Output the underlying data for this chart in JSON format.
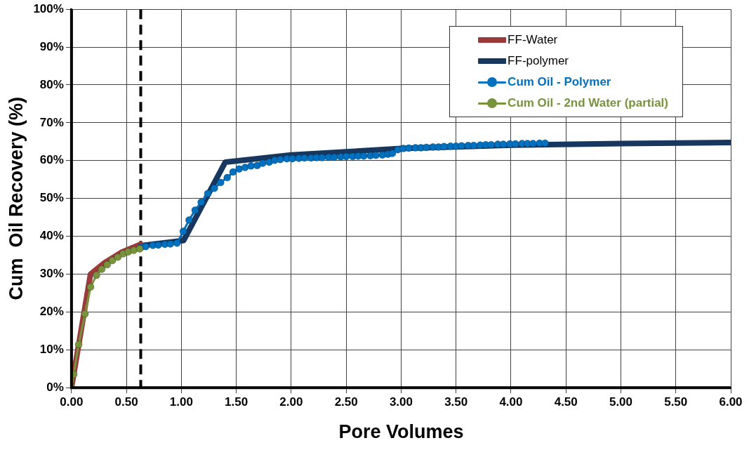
{
  "chart_data": {
    "type": "line",
    "xlabel": "Pore Volumes",
    "ylabel": "Cum  Oil Recovery (%)",
    "xlim": [
      0,
      6
    ],
    "xticks": [
      {
        "value": 0,
        "label": "0.00"
      },
      {
        "value": 0.5,
        "label": "0.50"
      },
      {
        "value": 1,
        "label": "1.00"
      },
      {
        "value": 1.5,
        "label": "1.50"
      },
      {
        "value": 2,
        "label": "2.00"
      },
      {
        "value": 2.5,
        "label": "2.50"
      },
      {
        "value": 3,
        "label": "3.00"
      },
      {
        "value": 3.5,
        "label": "3.50"
      },
      {
        "value": 4,
        "label": "4.00"
      },
      {
        "value": 4.5,
        "label": "4.50"
      },
      {
        "value": 5,
        "label": "5.00"
      },
      {
        "value": 5.5,
        "label": "5.50"
      },
      {
        "value": 6,
        "label": "6.00"
      }
    ],
    "ylim": [
      0,
      100
    ],
    "yticks": [
      {
        "value": 0,
        "label": "0%"
      },
      {
        "value": 10,
        "label": "10%"
      },
      {
        "value": 20,
        "label": "20%"
      },
      {
        "value": 30,
        "label": "30%"
      },
      {
        "value": 40,
        "label": "40%"
      },
      {
        "value": 50,
        "label": "50%"
      },
      {
        "value": 60,
        "label": "60%"
      },
      {
        "value": 70,
        "label": "70%"
      },
      {
        "value": 80,
        "label": "80%"
      },
      {
        "value": 90,
        "label": "90%"
      },
      {
        "value": 100,
        "label": "100%"
      }
    ],
    "grid": true,
    "legend": "top right",
    "ref_lines": [
      {
        "axis": "x",
        "value": 0.63,
        "color": "#000000",
        "line_style": "dashed"
      }
    ],
    "series": [
      {
        "name": "FF-Water",
        "marker": "none",
        "color": "#9b3a3a",
        "x": [
          0,
          0.173,
          0.3,
          0.45,
          0.63
        ],
        "values": [
          0,
          30,
          33,
          35.7,
          37.9
        ]
      },
      {
        "name": "FF-polymer",
        "marker": "none",
        "color": "#17375e",
        "x": [
          0.63,
          1.02,
          1.4,
          2,
          3,
          4,
          5,
          6
        ],
        "values": [
          37.5,
          38.9,
          59.6,
          61.5,
          63.2,
          64.1,
          64.5,
          64.8
        ]
      },
      {
        "name": "Cum Oil - Polymer",
        "marker": "circle",
        "color": "#0070c0",
        "x": [
          0.63,
          0.675,
          0.74,
          0.79,
          0.85,
          0.9,
          0.96,
          1.017,
          1.07,
          1.125,
          1.18,
          1.24,
          1.3,
          1.357,
          1.417,
          1.47,
          1.525,
          1.58,
          1.634,
          1.69,
          1.74,
          1.8,
          1.85,
          1.9,
          1.96,
          2.01,
          2.07,
          2.12,
          2.18,
          2.23,
          2.28,
          2.34,
          2.39,
          2.45,
          2.5,
          2.56,
          2.61,
          2.66,
          2.72,
          2.77,
          2.83,
          2.88,
          2.92,
          2.97,
          3.02,
          3.07,
          3.13,
          3.18,
          3.23,
          3.29,
          3.34,
          3.39,
          3.45,
          3.5,
          3.55,
          3.61,
          3.66,
          3.72,
          3.77,
          3.82,
          3.88,
          3.93,
          3.99,
          4.04,
          4.1,
          4.15,
          4.2,
          4.26,
          4.31
        ],
        "values": [
          37,
          37.3,
          37.6,
          37.7,
          37.9,
          38,
          38.2,
          41.3,
          44.3,
          46.9,
          49,
          51.3,
          52.7,
          54.2,
          55.5,
          57,
          57.8,
          58.2,
          58.6,
          58.7,
          59.3,
          59.6,
          60.1,
          60.3,
          60.5,
          60.5,
          60.6,
          60.7,
          60.7,
          60.8,
          60.8,
          60.9,
          60.9,
          61,
          61.1,
          61.1,
          61.2,
          61.2,
          61.3,
          61.4,
          61.5,
          61.7,
          61.9,
          62.9,
          63.2,
          63.3,
          63.4,
          63.4,
          63.5,
          63.6,
          63.6,
          63.7,
          63.8,
          63.8,
          63.9,
          64,
          64,
          64.1,
          64.2,
          64.2,
          64.3,
          64.3,
          64.4,
          64.4,
          64.5,
          64.5,
          64.5,
          64.6,
          64.6
        ]
      },
      {
        "name": "Cum Oil - 2nd Water (partial)",
        "marker": "circle",
        "color": "#77933c",
        "x": [
          0,
          0.02,
          0.065,
          0.123,
          0.173,
          0.227,
          0.275,
          0.325,
          0.372,
          0.422,
          0.47,
          0.517,
          0.567,
          0.62
        ],
        "values": [
          0,
          3.5,
          11.4,
          19.5,
          26.6,
          29.7,
          31.3,
          32.5,
          33.6,
          34.5,
          35.4,
          35.9,
          36.3,
          36.7
        ]
      }
    ]
  }
}
